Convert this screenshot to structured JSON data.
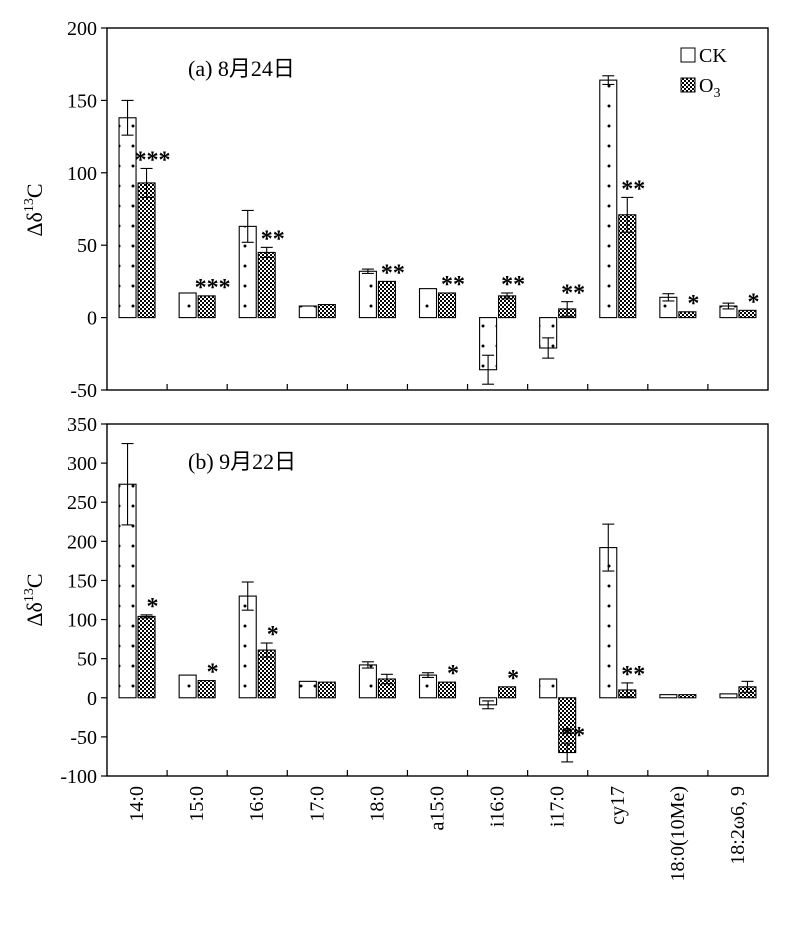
{
  "chart_data": [
    {
      "type": "bar",
      "title": "(a) 8月24日",
      "ylabel": "Δδ13C",
      "ylim": [
        -50,
        200
      ],
      "yticks": [
        -50,
        0,
        50,
        100,
        150,
        200
      ],
      "categories": [
        "14:0",
        "15:0",
        "16:0",
        "17:0",
        "18:0",
        "a15:0",
        "i16:0",
        "i17:0",
        "cy17",
        "18:0(10Me)",
        "18:2ω6, 9"
      ],
      "series": [
        {
          "name": "CK",
          "pattern": "dots",
          "values": [
            138,
            17,
            63,
            8,
            32,
            20,
            -36,
            -21,
            164,
            14,
            8
          ],
          "errors": [
            12,
            0,
            11,
            0,
            1.5,
            0,
            10,
            7,
            3,
            2.5,
            2
          ]
        },
        {
          "name": "O3",
          "pattern": "checker",
          "values": [
            93,
            15,
            45,
            9,
            25,
            17,
            15,
            6,
            71,
            4,
            5
          ],
          "errors": [
            10,
            0,
            3.5,
            0,
            0,
            0,
            2,
            5,
            12,
            0,
            0
          ]
        }
      ],
      "significance": [
        "***",
        "***",
        "**",
        "",
        "**",
        "**",
        "**",
        "**",
        "**",
        "*",
        "*"
      ],
      "legend": {
        "position": "top-right",
        "entries": [
          "CK",
          "O3"
        ]
      }
    },
    {
      "type": "bar",
      "title": "(b) 9月22日",
      "ylabel": "Δδ13C",
      "ylim": [
        -100,
        350
      ],
      "yticks": [
        -100,
        -50,
        0,
        50,
        100,
        150,
        200,
        250,
        300,
        350
      ],
      "categories": [
        "14:0",
        "15:0",
        "16:0",
        "17:0",
        "18:0",
        "a15:0",
        "i16:0",
        "i17:0",
        "cy17",
        "18:0(10Me)",
        "18:2ω6, 9"
      ],
      "series": [
        {
          "name": "CK",
          "pattern": "dots",
          "values": [
            273,
            29,
            130,
            21,
            42,
            29,
            -9,
            24,
            192,
            4,
            5
          ],
          "errors": [
            52,
            0,
            18,
            0,
            4,
            3,
            5,
            0,
            30,
            0,
            0
          ]
        },
        {
          "name": "O3",
          "pattern": "checker",
          "values": [
            104,
            22,
            61,
            20,
            24,
            20,
            14,
            -70,
            10,
            4,
            14
          ],
          "errors": [
            2,
            0,
            9,
            0,
            6,
            0,
            0,
            12,
            9,
            0,
            7
          ]
        }
      ],
      "significance": [
        "*",
        "*",
        "*",
        "",
        "",
        "*",
        "*",
        "**",
        "**",
        "",
        ""
      ]
    }
  ]
}
